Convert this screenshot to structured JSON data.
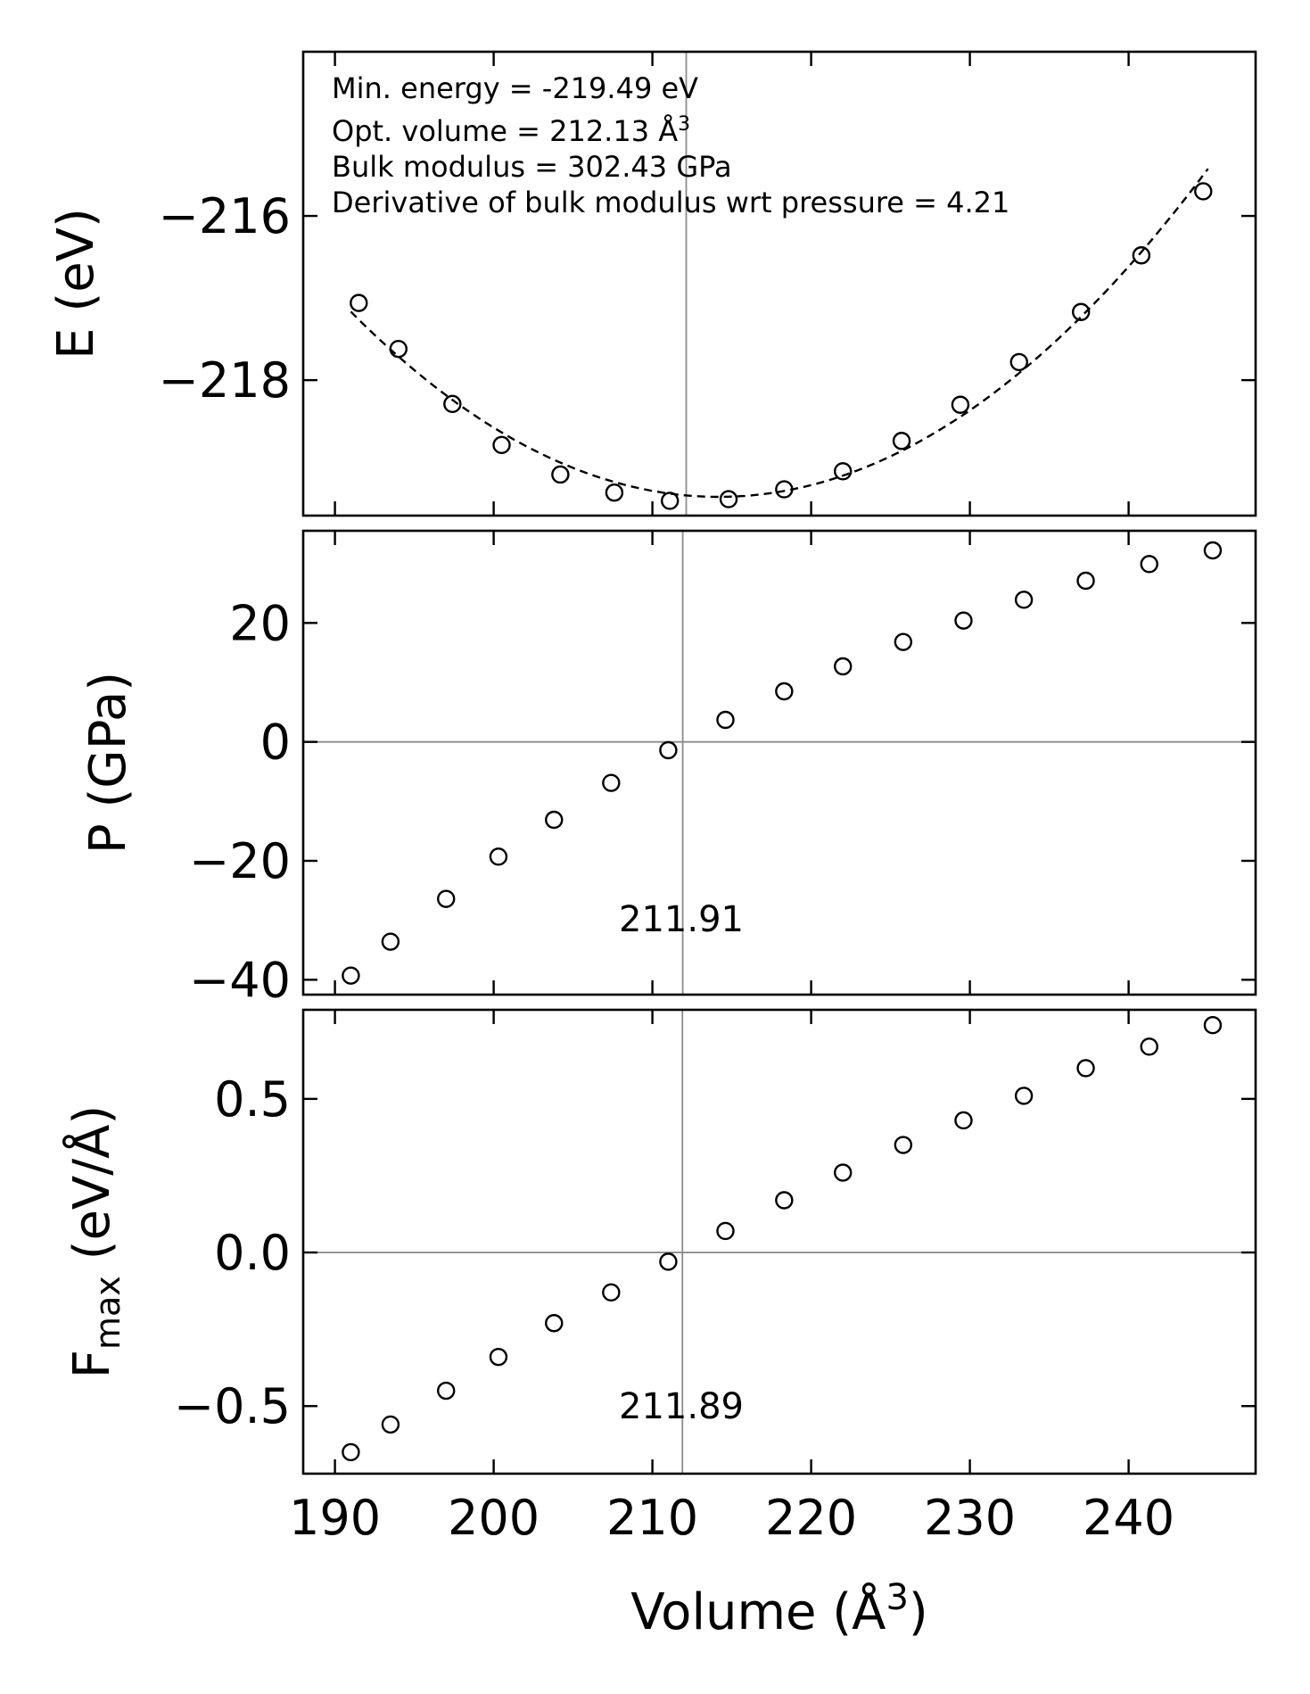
{
  "chart_data": [
    {
      "id": "energy",
      "type": "line",
      "xlabel": "Volume (Å3)",
      "ylabel": "E (eV)",
      "xlim": [
        188,
        248
      ],
      "ylim": [
        -219.65,
        -214.0
      ],
      "yticks": [
        -216,
        -218
      ],
      "yticklabels": [
        "−216",
        "−218"
      ],
      "vline_x": 212.13,
      "annotations": [
        "Min. energy = -219.49 eV",
        "Opt. volume = 212.13 Å3",
        "Bulk modulus = 302.43 GPa",
        "Derivative of bulk modulus wrt pressure = 4.21"
      ],
      "fit": {
        "style": "dashed",
        "x_range": [
          191.0,
          245.0
        ]
      },
      "series": [
        {
          "x": [
            191.5,
            194.0,
            197.4,
            200.5,
            204.2,
            207.6,
            211.1,
            214.8,
            218.3,
            222.0,
            225.7,
            229.4,
            233.1,
            237.0,
            240.8,
            244.7
          ],
          "values": [
            -217.06,
            -217.62,
            -218.29,
            -218.79,
            -219.15,
            -219.37,
            -219.47,
            -219.45,
            -219.33,
            -219.11,
            -218.74,
            -218.3,
            -217.78,
            -217.17,
            -216.48,
            -215.7
          ]
        }
      ]
    },
    {
      "id": "pressure",
      "type": "scatter",
      "ylabel": "P (GPa)",
      "xlim": [
        188,
        248
      ],
      "ylim": [
        -42.5,
        35.5
      ],
      "yticks": [
        20,
        0,
        -20,
        -40
      ],
      "yticklabels": [
        "20",
        "0",
        "−20",
        "−40"
      ],
      "hline_y": 0,
      "vline_x": 211.91,
      "vline_label": "211.91",
      "series": [
        {
          "x": [
            191.0,
            193.5,
            197.0,
            200.3,
            203.8,
            207.4,
            211.0,
            214.6,
            218.3,
            222.0,
            225.8,
            229.6,
            233.4,
            237.3,
            241.3,
            245.3
          ],
          "values": [
            -39.3,
            -33.6,
            -26.4,
            -19.3,
            -13.1,
            -6.9,
            -1.4,
            3.7,
            8.5,
            12.7,
            16.8,
            20.4,
            23.9,
            27.1,
            29.9,
            32.2
          ]
        }
      ]
    },
    {
      "id": "force",
      "type": "scatter",
      "ylabel": "Fmax (eV/Å)",
      "xlim": [
        188,
        248
      ],
      "ylim": [
        -0.72,
        0.79
      ],
      "yticks": [
        0.5,
        0.0,
        -0.5
      ],
      "yticklabels": [
        "0.5",
        "0.0",
        "−0.5"
      ],
      "xticks": [
        190,
        200,
        210,
        220,
        230,
        240
      ],
      "xticklabels": [
        "190",
        "200",
        "210",
        "220",
        "230",
        "240"
      ],
      "hline_y": 0,
      "vline_x": 211.89,
      "vline_label": "211.89",
      "series": [
        {
          "x": [
            191.0,
            193.5,
            197.0,
            200.3,
            203.8,
            207.4,
            211.0,
            214.6,
            218.3,
            222.0,
            225.8,
            229.6,
            233.4,
            237.3,
            241.3,
            245.3
          ],
          "values": [
            -0.65,
            -0.56,
            -0.45,
            -0.34,
            -0.23,
            -0.13,
            -0.03,
            0.07,
            0.17,
            0.26,
            0.35,
            0.43,
            0.51,
            0.6,
            0.67,
            0.74
          ]
        }
      ]
    }
  ],
  "labels": {
    "energy_ylabel": "E (eV)",
    "pressure_ylabel": "P (GPa)",
    "force_ylabel_main": "F",
    "force_ylabel_sub": "max",
    "force_ylabel_unit": " (eV/Å)",
    "xlabel_main": "Volume (Å",
    "xlabel_sup": "3",
    "xlabel_end": ")",
    "ann_line1": "Min. energy = -219.49 eV",
    "ann_line2_main": "Opt. volume = 212.13 Å",
    "ann_line2_sup": "3",
    "ann_line3": "Bulk modulus = 302.43 GPa",
    "ann_line4": "Derivative of bulk modulus wrt pressure = 4.21",
    "pressure_vline_label": "211.91",
    "force_vline_label": "211.89"
  }
}
